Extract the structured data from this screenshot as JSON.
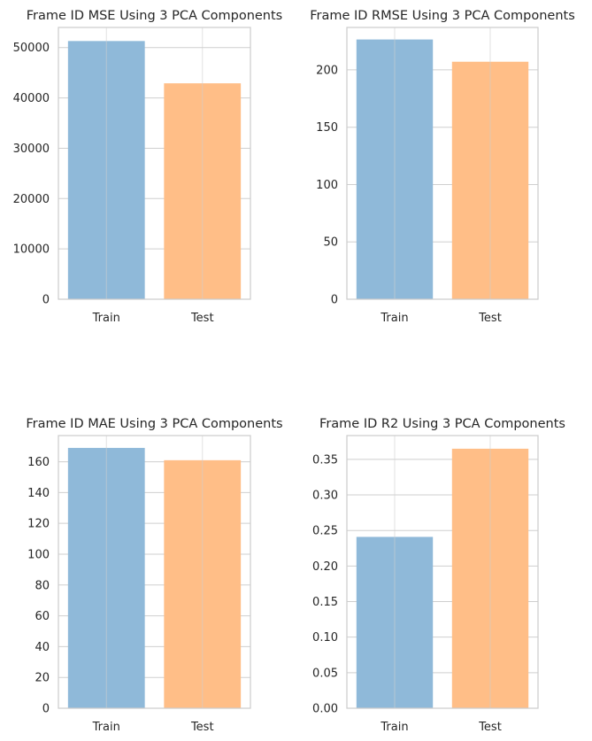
{
  "chart_data": [
    {
      "type": "bar",
      "title": "Frame ID MSE Using 3 PCA Components",
      "categories": [
        "Train",
        "Test"
      ],
      "values": [
        51300,
        42900
      ],
      "colors": [
        "#8fb9d9",
        "#ffbe87"
      ],
      "ylim": [
        0,
        54000
      ],
      "yticks": [
        0,
        10000,
        20000,
        30000,
        40000,
        50000
      ],
      "ytick_labels": [
        "0",
        "10000",
        "20000",
        "30000",
        "40000",
        "50000"
      ],
      "grid": true
    },
    {
      "type": "bar",
      "title": "Frame ID RMSE Using 3 PCA Components",
      "categories": [
        "Train",
        "Test"
      ],
      "values": [
        226.5,
        207.1
      ],
      "colors": [
        "#8fb9d9",
        "#ffbe87"
      ],
      "ylim": [
        0,
        237
      ],
      "yticks": [
        0,
        50,
        100,
        150,
        200
      ],
      "ytick_labels": [
        "0",
        "50",
        "100",
        "150",
        "200"
      ],
      "grid": true
    },
    {
      "type": "bar",
      "title": "Frame ID MAE Using 3 PCA Components",
      "categories": [
        "Train",
        "Test"
      ],
      "values": [
        169.0,
        161.0
      ],
      "colors": [
        "#8fb9d9",
        "#ffbe87"
      ],
      "ylim": [
        0,
        177
      ],
      "yticks": [
        0,
        20,
        40,
        60,
        80,
        100,
        120,
        140,
        160
      ],
      "ytick_labels": [
        "0",
        "20",
        "40",
        "60",
        "80",
        "100",
        "120",
        "140",
        "160"
      ],
      "grid": true
    },
    {
      "type": "bar",
      "title": "Frame ID R2 Using 3 PCA Components",
      "categories": [
        "Train",
        "Test"
      ],
      "values": [
        0.241,
        0.365
      ],
      "colors": [
        "#8fb9d9",
        "#ffbe87"
      ],
      "ylim": [
        0,
        0.3835
      ],
      "yticks": [
        0,
        0.05,
        0.1,
        0.15,
        0.2,
        0.25,
        0.3,
        0.35
      ],
      "ytick_labels": [
        "0.00",
        "0.05",
        "0.10",
        "0.15",
        "0.20",
        "0.25",
        "0.30",
        "0.35"
      ],
      "grid": true
    }
  ]
}
